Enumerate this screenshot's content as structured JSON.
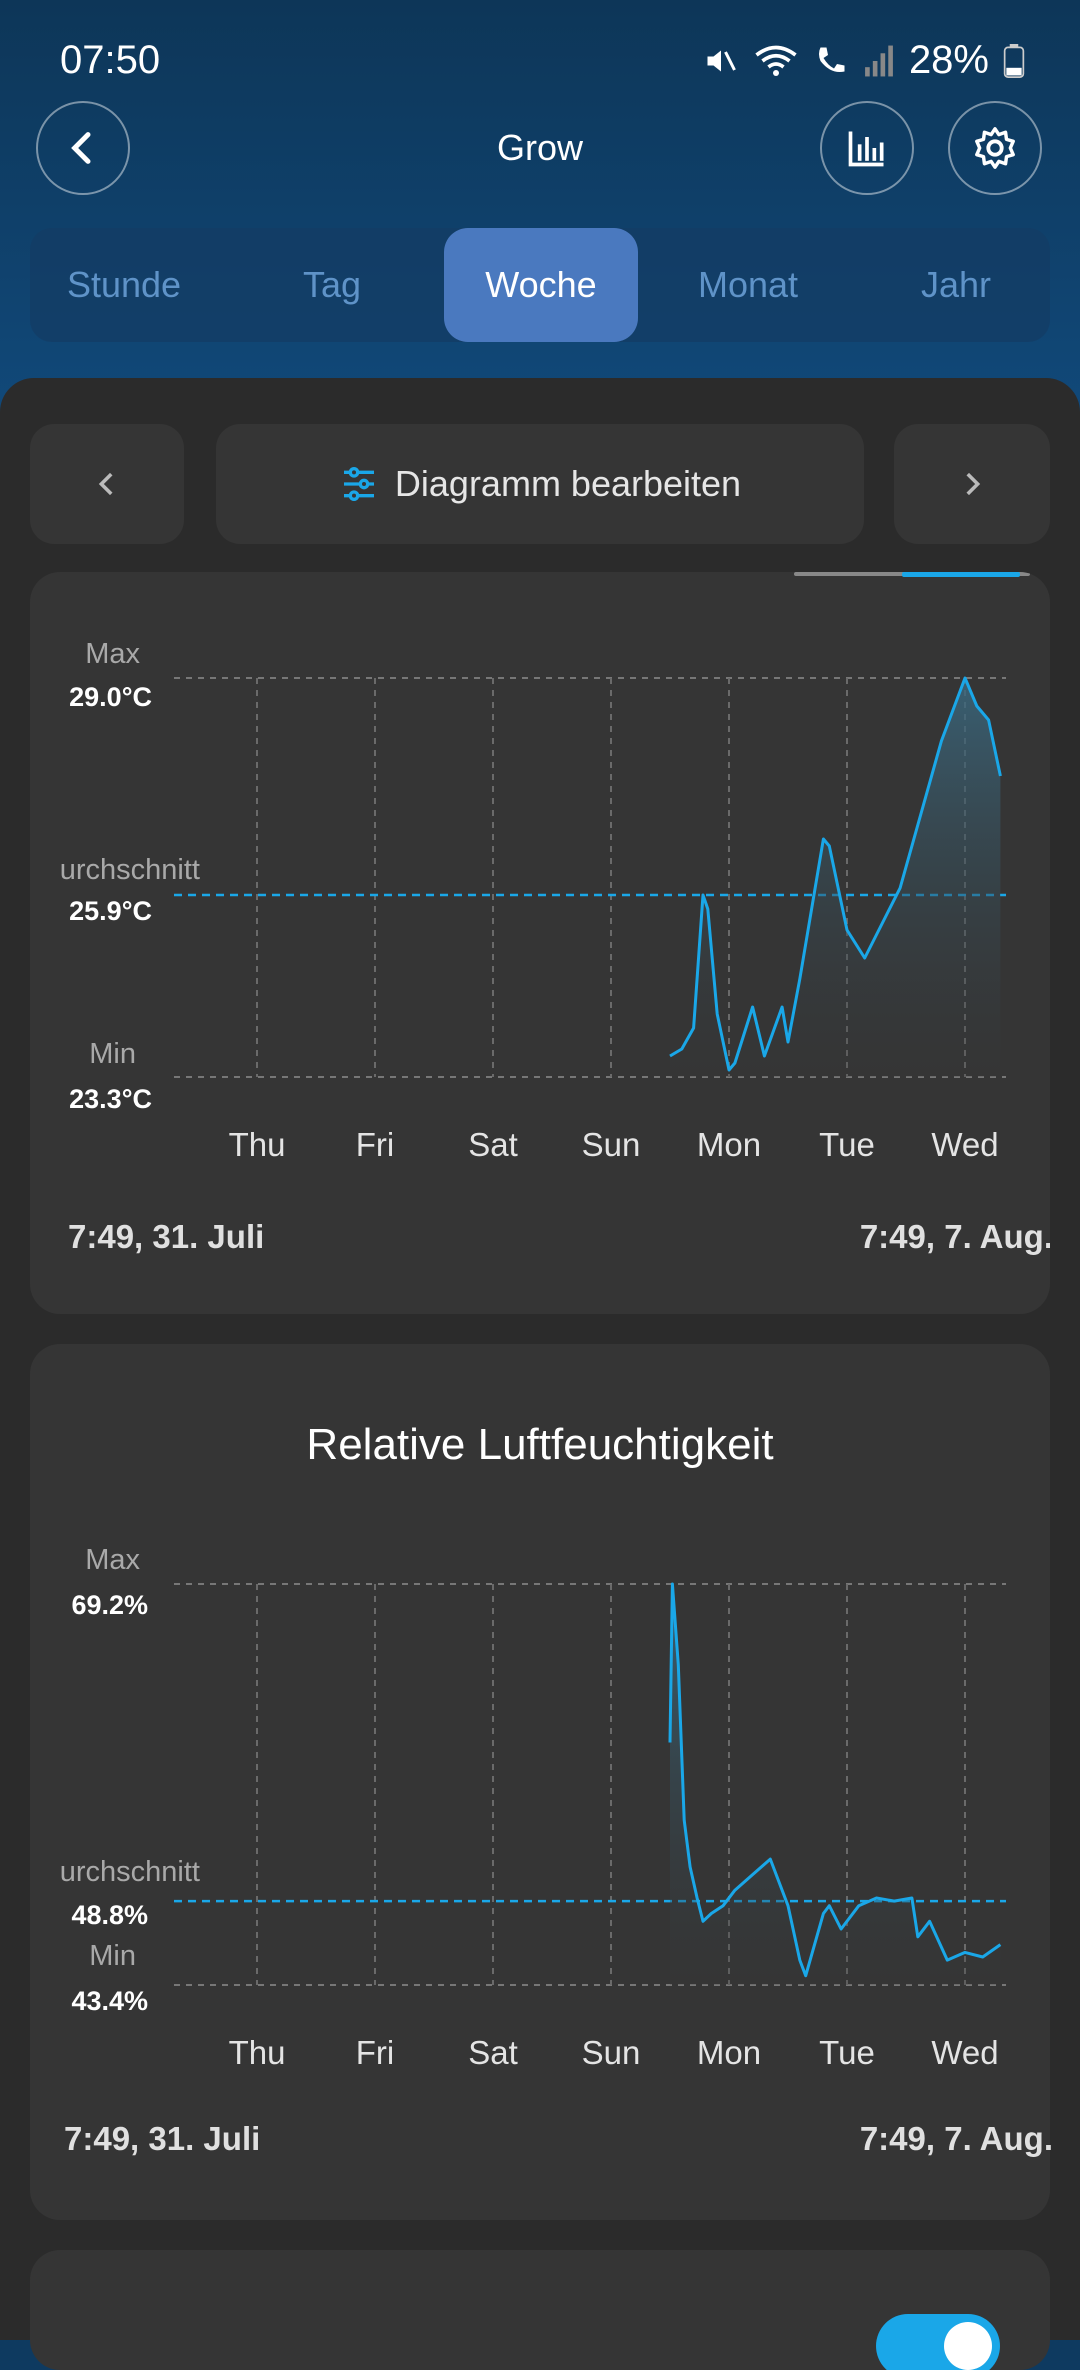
{
  "status_bar": {
    "time": "07:50",
    "battery": "28%"
  },
  "header": {
    "title": "Grow",
    "back_icon": "back-arrow-icon",
    "stats_icon": "bar-chart-icon",
    "settings_icon": "gear-icon"
  },
  "tabs": [
    {
      "label": "Stunde",
      "active": false
    },
    {
      "label": "Tag",
      "active": false
    },
    {
      "label": "Woche",
      "active": true
    },
    {
      "label": "Monat",
      "active": false
    },
    {
      "label": "Jahr",
      "active": false
    }
  ],
  "toolbar": {
    "edit_label": "Diagramm bearbeiten"
  },
  "charts": [
    {
      "max_label": "Max",
      "max_value": "29.0°C",
      "avg_label": "urchschnitt",
      "avg_value": "25.9°C",
      "min_label": "Min",
      "min_value": "23.3°C",
      "days": [
        "Thu",
        "Fri",
        "Sat",
        "Sun",
        "Mon",
        "Tue",
        "Wed"
      ],
      "start": "7:49,  31. Juli",
      "end": "7:49,  7. Aug."
    },
    {
      "title": "Relative Luftfeuchtigkeit",
      "max_label": "Max",
      "max_value": "69.2%",
      "avg_label": "urchschnitt",
      "avg_value": "48.8%",
      "min_label": "Min",
      "min_value": "43.4%",
      "days": [
        "Thu",
        "Fri",
        "Sat",
        "Sun",
        "Mon",
        "Tue",
        "Wed"
      ],
      "start": "7:49,  31. Juli",
      "end": "7:49,  7. Aug."
    }
  ],
  "colors": {
    "accent": "#1aa7e8",
    "card": "#353535",
    "tab_active": "#4a79bf"
  },
  "chart_data": [
    {
      "type": "line",
      "ylabel": "",
      "ylim": [
        23.3,
        29.0
      ],
      "average": 25.9,
      "x_days": [
        "Thu",
        "Fri",
        "Sat",
        "Sun",
        "Mon",
        "Tue",
        "Wed"
      ],
      "series": [
        {
          "x": [
            3.5,
            3.6,
            3.7,
            3.78,
            3.82,
            3.9,
            4.0,
            4.05,
            4.2,
            4.3,
            4.45,
            4.5,
            4.6,
            4.8,
            4.85,
            5.0,
            5.15,
            5.3,
            5.45,
            5.6,
            5.8,
            6.0,
            6.1,
            6.2,
            6.3
          ],
          "y": [
            23.6,
            23.7,
            24.0,
            25.9,
            25.7,
            24.2,
            23.4,
            23.5,
            24.3,
            23.6,
            24.3,
            23.8,
            24.7,
            26.7,
            26.6,
            25.4,
            25.0,
            25.5,
            26.0,
            26.9,
            28.1,
            29.0,
            28.6,
            28.4,
            27.6
          ]
        }
      ]
    },
    {
      "type": "line",
      "ylabel": "",
      "ylim": [
        43.4,
        69.2
      ],
      "average": 48.8,
      "x_days": [
        "Thu",
        "Fri",
        "Sat",
        "Sun",
        "Mon",
        "Tue",
        "Wed"
      ],
      "series": [
        {
          "x": [
            3.5,
            3.52,
            3.57,
            3.62,
            3.67,
            3.73,
            3.78,
            3.85,
            3.95,
            4.05,
            4.2,
            4.35,
            4.5,
            4.6,
            4.65,
            4.8,
            4.85,
            4.95,
            5.1,
            5.25,
            5.4,
            5.55,
            5.6,
            5.7,
            5.85,
            6.0,
            6.15,
            6.3
          ],
          "y": [
            59.0,
            69.2,
            64.0,
            54.0,
            51.0,
            49.0,
            47.5,
            48.0,
            48.5,
            49.5,
            50.5,
            51.5,
            48.5,
            45.0,
            44.0,
            48.0,
            48.5,
            47.0,
            48.5,
            49.0,
            48.8,
            49.0,
            46.5,
            47.5,
            45.0,
            45.5,
            45.2,
            46.0
          ]
        }
      ]
    }
  ]
}
